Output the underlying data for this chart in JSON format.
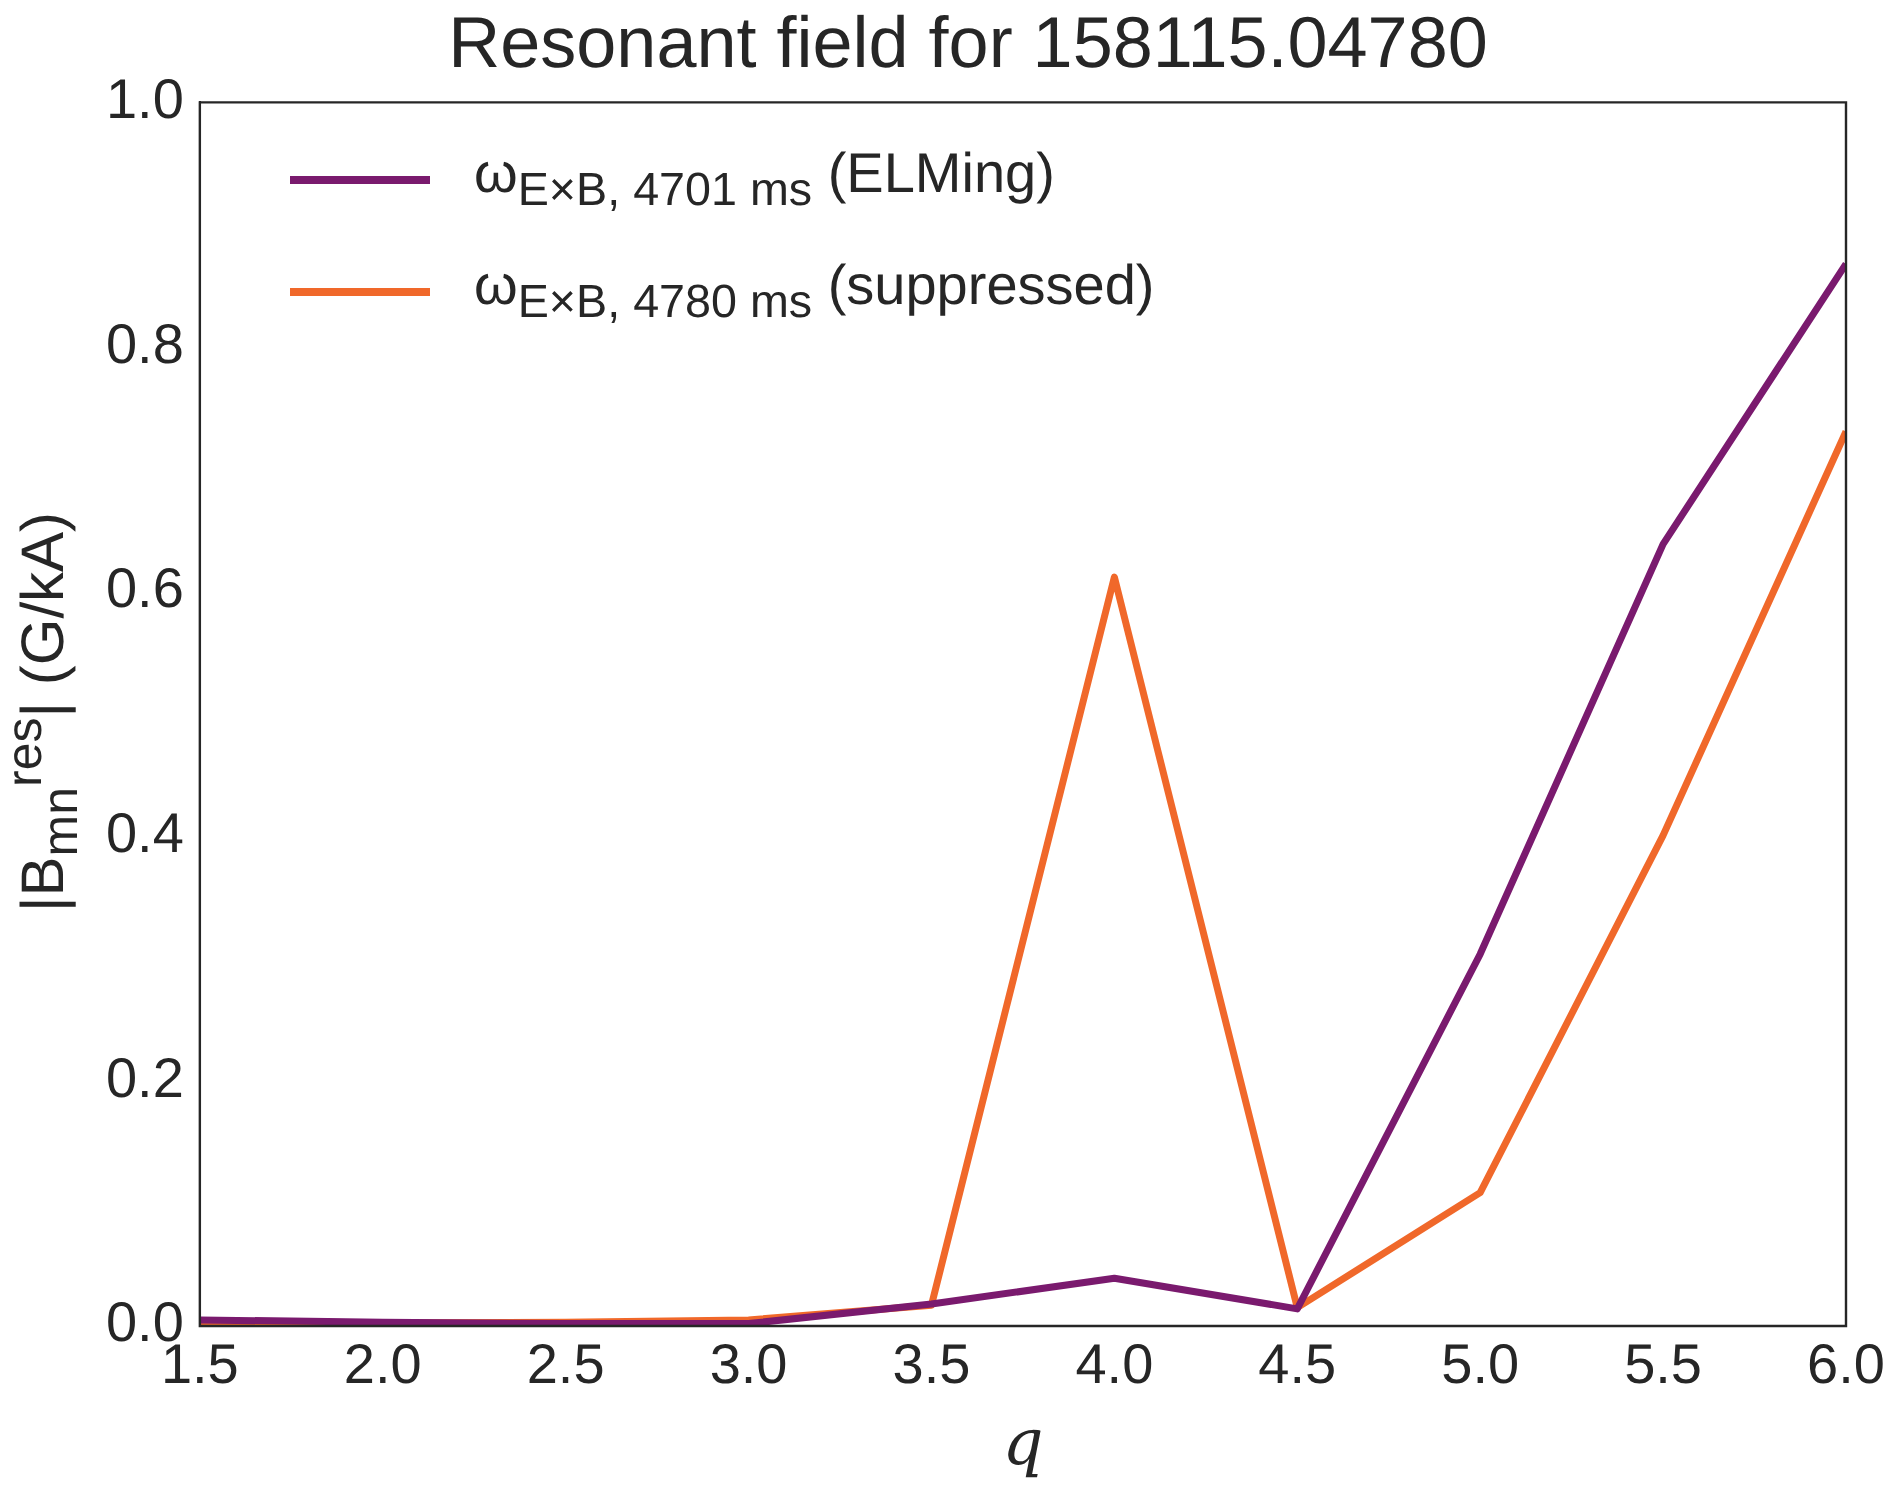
{
  "chart_data": {
    "type": "line",
    "title": "Resonant field for 158115.04780",
    "xlabel": "q",
    "ylabel": "|B$_{mn}$$^{res}$| (G/kA)",
    "x": [
      1.5,
      2.0,
      2.5,
      3.0,
      3.5,
      4.0,
      4.5,
      5.0,
      5.5,
      6.0
    ],
    "series": [
      {
        "name": "ω$_{E×B, 4701 ms}$ (ELMing)",
        "color": "#7a1a6e",
        "values": [
          0.005,
          0.003,
          0.002,
          0.002,
          0.018,
          0.039,
          0.014,
          0.304,
          0.639,
          0.868
        ]
      },
      {
        "name": "ω$_{E×B, 4780 ms}$ (suppressed)",
        "color": "#f0682a",
        "values": [
          0.002,
          null,
          0.003,
          0.005,
          0.017,
          0.612,
          0.015,
          0.109,
          0.401,
          0.731
        ]
      }
    ],
    "xlim": [
      1.5,
      6.0
    ],
    "xticks": [
      1.5,
      {
        "value": 2,
        "label": "2.0"
      },
      2.5,
      {
        "value": 3,
        "label": "3.0"
      },
      3.5,
      {
        "value": 4,
        "label": "4.0"
      },
      4.5,
      {
        "value": 5,
        "label": "5.0"
      },
      5.5,
      {
        "value": 6,
        "label": "6.0"
      }
    ],
    "ylim": [
      0,
      1
    ],
    "yticks": [
      {
        "value": 0,
        "label": "0.0"
      },
      0.2,
      0.4,
      0.6,
      0.8,
      {
        "value": 1,
        "label": "1.0"
      }
    ],
    "grid": false,
    "legend": "top left",
    "marker": "none",
    "line_style": "solid"
  }
}
